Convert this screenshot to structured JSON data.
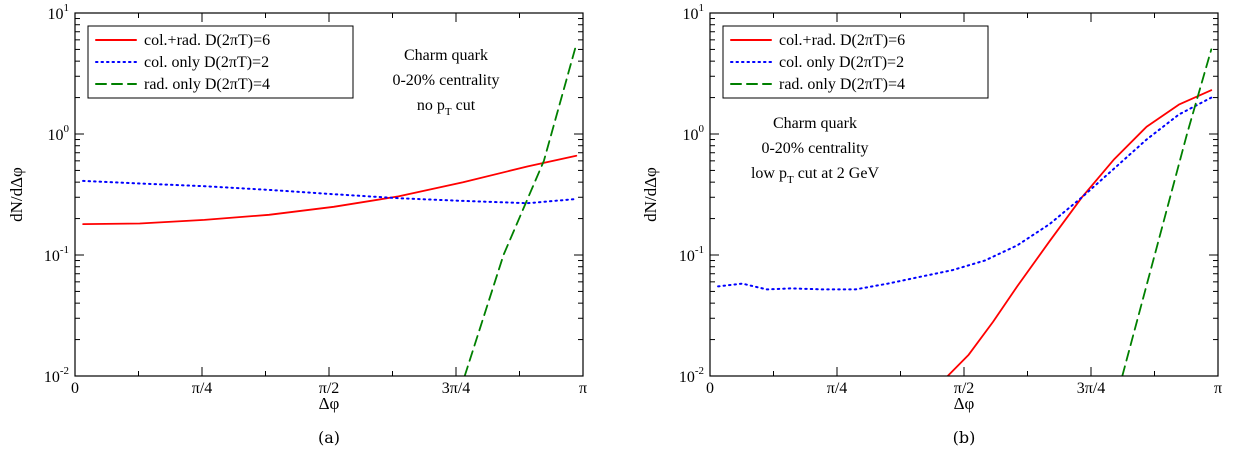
{
  "chart_data": [
    {
      "type": "line",
      "caption": "(a)",
      "xlabel": "Δφ",
      "ylabel": "dN/dΔφ",
      "xlim": [
        0,
        3.14159
      ],
      "ylim": [
        0.01,
        10
      ],
      "yscale": "log",
      "x_ticks": [
        {
          "value": 0,
          "label": "0"
        },
        {
          "value": 0.7854,
          "label": "π/4"
        },
        {
          "value": 1.5708,
          "label": "π/2"
        },
        {
          "value": 2.3562,
          "label": "3π/4"
        },
        {
          "value": 3.1416,
          "label": "π"
        }
      ],
      "y_ticks": [
        {
          "value": 0.01,
          "base": "10",
          "exp": "-2"
        },
        {
          "value": 0.1,
          "base": "10",
          "exp": "-1"
        },
        {
          "value": 1,
          "base": "10",
          "exp": "0"
        },
        {
          "value": 10,
          "base": "10",
          "exp": "1"
        }
      ],
      "legend_position": "top-left",
      "annotation": [
        "Charm quark",
        "0-20% centrality",
        "no p_T cut"
      ],
      "series": [
        {
          "name": "col.+rad. D(2πT)=6",
          "color": "#ff0000",
          "dash": "solid",
          "x": [
            0.05,
            0.4,
            0.8,
            1.2,
            1.6,
            2.0,
            2.4,
            2.8,
            3.1
          ],
          "y": [
            0.18,
            0.182,
            0.195,
            0.215,
            0.25,
            0.305,
            0.4,
            0.54,
            0.66
          ]
        },
        {
          "name": "col. only D(2πT)=2",
          "color": "#0000ff",
          "dash": "dotted",
          "x": [
            0.05,
            0.4,
            0.8,
            1.2,
            1.6,
            2.0,
            2.4,
            2.8,
            3.1
          ],
          "y": [
            0.41,
            0.39,
            0.37,
            0.345,
            0.318,
            0.295,
            0.28,
            0.268,
            0.29
          ]
        },
        {
          "name": "rad. only D(2πT)=4",
          "color": "#008000",
          "dash": "dashed",
          "x": [
            2.41,
            2.65,
            2.9,
            3.1
          ],
          "y": [
            0.01,
            0.1,
            0.6,
            5.5
          ]
        }
      ]
    },
    {
      "type": "line",
      "caption": "(b)",
      "xlabel": "Δφ",
      "ylabel": "dN/dΔφ",
      "xlim": [
        0,
        3.14159
      ],
      "ylim": [
        0.01,
        10
      ],
      "yscale": "log",
      "x_ticks": [
        {
          "value": 0,
          "label": "0"
        },
        {
          "value": 0.7854,
          "label": "π/4"
        },
        {
          "value": 1.5708,
          "label": "π/2"
        },
        {
          "value": 2.3562,
          "label": "3π/4"
        },
        {
          "value": 3.1416,
          "label": "π"
        }
      ],
      "y_ticks": [
        {
          "value": 0.01,
          "base": "10",
          "exp": "-2"
        },
        {
          "value": 0.1,
          "base": "10",
          "exp": "-1"
        },
        {
          "value": 1,
          "base": "10",
          "exp": "0"
        },
        {
          "value": 10,
          "base": "10",
          "exp": "1"
        }
      ],
      "legend_position": "top-left",
      "annotation": [
        "Charm quark",
        "0-20% centrality",
        "low p_T cut at 2 GeV"
      ],
      "series": [
        {
          "name": "col.+rad. D(2πT)=6",
          "color": "#ff0000",
          "dash": "solid",
          "x": [
            1.47,
            1.6,
            1.75,
            1.9,
            2.1,
            2.3,
            2.5,
            2.7,
            2.9,
            3.1
          ],
          "y": [
            0.01,
            0.015,
            0.028,
            0.055,
            0.13,
            0.3,
            0.62,
            1.15,
            1.75,
            2.3
          ]
        },
        {
          "name": "col. only D(2πT)=2",
          "color": "#0000ff",
          "dash": "dotted",
          "x": [
            0.05,
            0.2,
            0.35,
            0.5,
            0.7,
            0.9,
            1.1,
            1.3,
            1.5,
            1.7,
            1.9,
            2.1,
            2.3,
            2.5,
            2.7,
            2.9,
            3.1
          ],
          "y": [
            0.055,
            0.058,
            0.052,
            0.053,
            0.052,
            0.052,
            0.058,
            0.066,
            0.075,
            0.09,
            0.12,
            0.18,
            0.3,
            0.52,
            0.9,
            1.45,
            2.0
          ]
        },
        {
          "name": "rad. only D(2πT)=4",
          "color": "#008000",
          "dash": "dashed",
          "x": [
            2.55,
            2.75,
            2.95,
            3.1
          ],
          "y": [
            0.01,
            0.1,
            1.0,
            5.0
          ]
        }
      ]
    }
  ]
}
